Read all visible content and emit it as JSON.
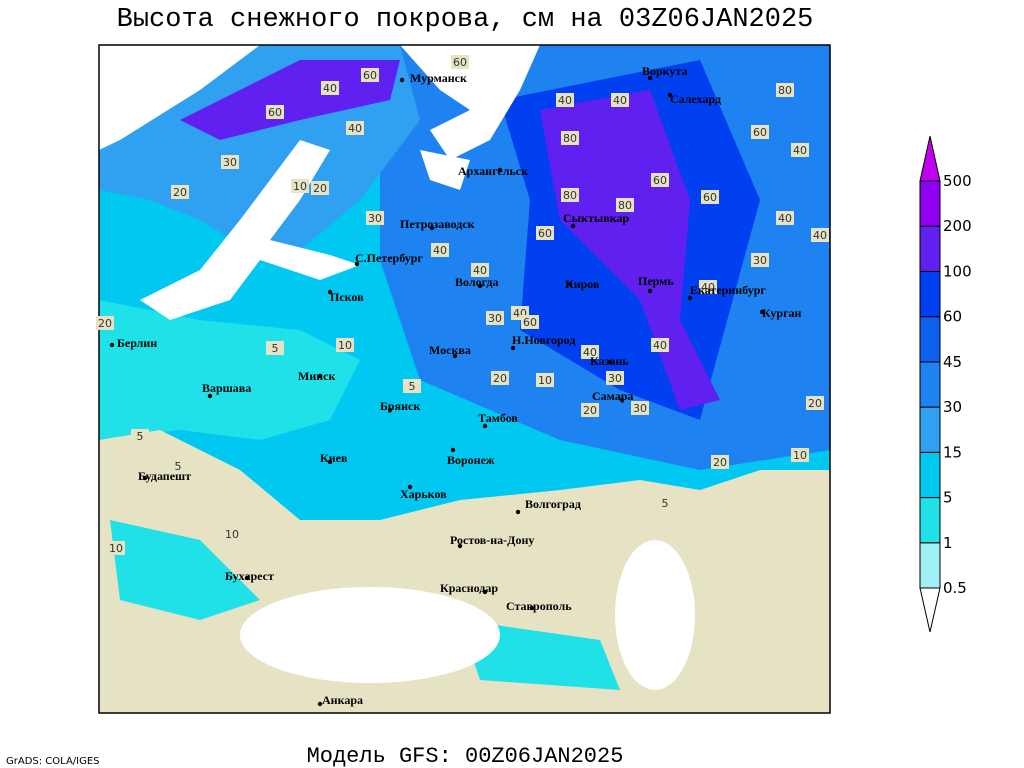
{
  "title": "Высота снежного покрова, см на 03Z06JAN2025",
  "footer": "Модель GFS: 00Z06JAN2025",
  "credit": "GrADS: COLA/IGES",
  "legend": {
    "levels": [
      0.5,
      1,
      5,
      15,
      30,
      45,
      60,
      100,
      200,
      500
    ],
    "colors": [
      "#ffffff",
      "#a0f0f5",
      "#20e0e8",
      "#00c8f0",
      "#30a0f0",
      "#1e82f0",
      "#1060f0",
      "#0040f0",
      "#6020f0",
      "#9000f0",
      "#c000f0"
    ]
  },
  "cities": [
    "Мурманск",
    "Воркута",
    "Салехард",
    "Архангельск",
    "Петрозаводск",
    "Сыктывкар",
    "С.Петербург",
    "Вологда",
    "Киров",
    "Пермь",
    "Екатеринбург",
    "Курган",
    "Псков",
    "Н.Новгород",
    "Москва",
    "Казань",
    "Берлин",
    "Варшава",
    "Минск",
    "Брянск",
    "Самара",
    "Тамбов",
    "Киев",
    "Воронеж",
    "Будапешт",
    "Харьков",
    "Волгоград",
    "Ростов-на-Дону",
    "Бухарест",
    "Краснодар",
    "Ставрополь",
    "Анкара"
  ],
  "contour_labels": [
    "60",
    "40",
    "60",
    "40",
    "60",
    "40",
    "80",
    "40",
    "60",
    "30",
    "20",
    "10",
    "20",
    "30",
    "40",
    "60",
    "80",
    "80",
    "60",
    "40",
    "40",
    "40",
    "30",
    "40",
    "30",
    "40",
    "60",
    "40",
    "20",
    "10",
    "20",
    "10",
    "5",
    "5",
    "5",
    "5",
    "10",
    "10",
    "5",
    "30",
    "20",
    "30",
    "40",
    "10",
    "20",
    "20",
    "60",
    "80",
    "40"
  ]
}
